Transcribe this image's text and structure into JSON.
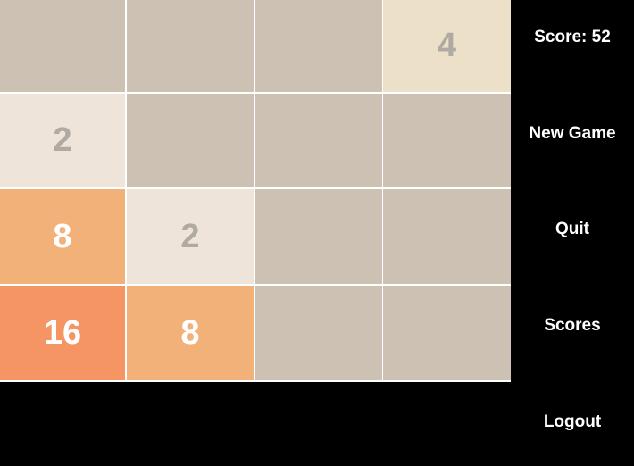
{
  "colors": {
    "background": "#000000",
    "grid_line": "#ffffff",
    "empty": "#cdc1b4",
    "tile_2": "#eee4da",
    "tile_4": "#ede0c8",
    "tile_8": "#f2b179",
    "tile_16": "#f59563",
    "dark_text": "#b0aaa3",
    "light_text": "#ffffff"
  },
  "board": {
    "rows": [
      [
        "",
        "",
        "",
        "4"
      ],
      [
        "2",
        "",
        "",
        ""
      ],
      [
        "8",
        "2",
        "",
        ""
      ],
      [
        "16",
        "8",
        "",
        ""
      ]
    ]
  },
  "sidebar": {
    "score": "Score: 52",
    "new_game": "New Game",
    "quit": "Quit",
    "scores": "Scores",
    "logout": "Logout"
  }
}
